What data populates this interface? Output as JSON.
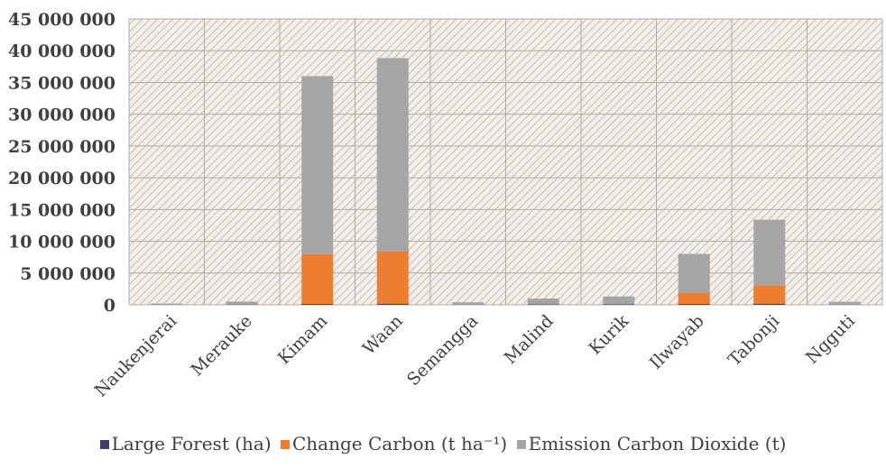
{
  "chart_data": {
    "type": "bar",
    "stacked": true,
    "categories": [
      "Naukenjerai",
      "Merauke",
      "Kimam",
      "Waan",
      "Semangga",
      "Malind",
      "Kurik",
      "Ilwayab",
      "Tabonji",
      "Ngguti"
    ],
    "series": [
      {
        "name": "Large Forest (ha)",
        "color": "#3b3f6b",
        "values": [
          20000,
          50000,
          150000,
          180000,
          40000,
          80000,
          110000,
          150000,
          180000,
          40000
        ]
      },
      {
        "name": "Change Carbon (t ha⁻¹)",
        "color": "#ed7d31",
        "values": [
          0,
          0,
          7850000,
          8250000,
          0,
          0,
          0,
          1750000,
          2900000,
          0
        ]
      },
      {
        "name": "Emission Carbon Dioxide (t)",
        "color": "#a5a5a5",
        "values": [
          180000,
          450000,
          28000000,
          30400000,
          360000,
          900000,
          1200000,
          6100000,
          10300000,
          440000
        ]
      }
    ],
    "yticks": [
      "0",
      "5 000 000",
      "10 000 000",
      "15 000 000",
      "20 000 000",
      "25 000 000",
      "30 000 000",
      "35 000 000",
      "40 000 000",
      "45 000 000"
    ],
    "ylim": [
      0,
      45000000
    ],
    "xlabel": "",
    "ylabel": "",
    "grid": true,
    "legend": "bottom",
    "plot_background": "hatched"
  }
}
